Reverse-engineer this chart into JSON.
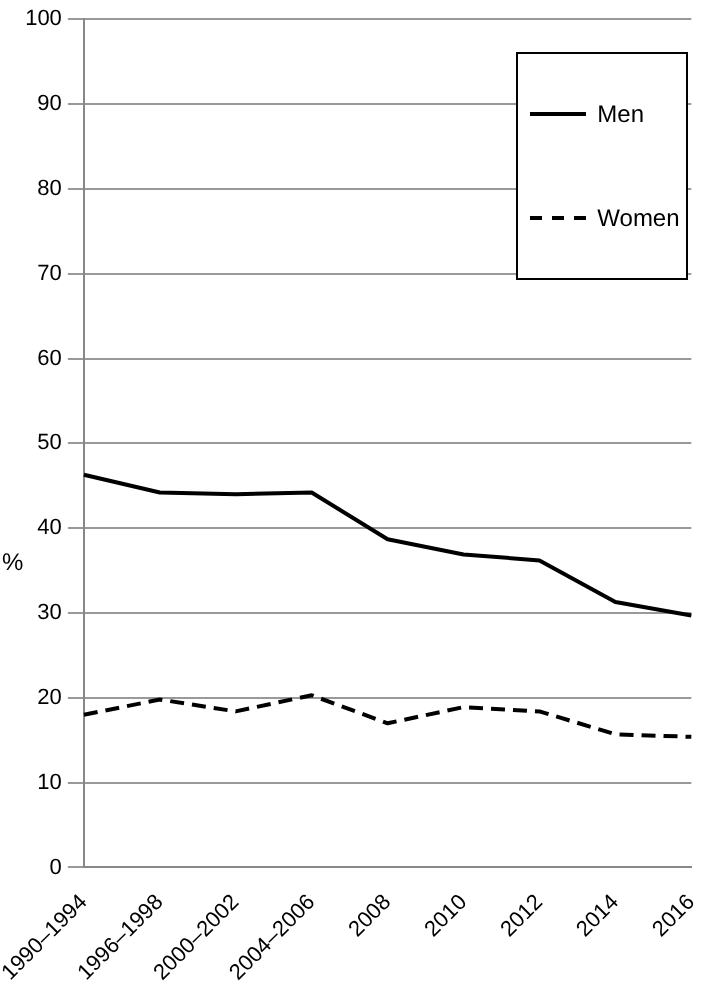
{
  "chart_data": {
    "type": "line",
    "ylabel": "%",
    "categories": [
      "1990–1994",
      "1996–1998",
      "2000–2002",
      "2004–2006",
      "2008",
      "2010",
      "2012",
      "2014",
      "2016"
    ],
    "series": [
      {
        "name": "Men",
        "color": "#000000",
        "line_style": "solid",
        "values": [
          46.3,
          44.2,
          44,
          44.2,
          38.7,
          36.9,
          36.2,
          31.3,
          29.7
        ]
      },
      {
        "name": "Women",
        "color": "#000000",
        "line_style": "dashed",
        "values": [
          18,
          19.8,
          18.4,
          20.3,
          17,
          18.9,
          18.4,
          15.7,
          15.4
        ]
      }
    ],
    "ylim": [
      0,
      100
    ],
    "yticks": [
      0,
      10,
      20,
      30,
      40,
      50,
      60,
      70,
      80,
      90,
      100
    ],
    "grid": "y",
    "legend": "top right",
    "marker": "none"
  }
}
